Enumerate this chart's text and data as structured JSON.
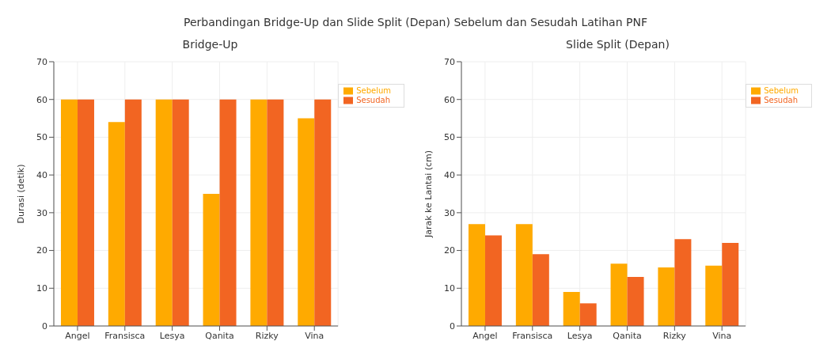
{
  "chart_data": [
    {
      "type": "bar",
      "title": "Bridge-Up",
      "ylabel": "Durasi (detik)",
      "annotations": [
        "Perbandingan Bridge-Up dan Slide Split (Depan) Sebelum dan Sesudah Latihan PNF"
      ],
      "categories": [
        "Angel",
        "Fransisca",
        "Lesya",
        "Qanita",
        "Rizky",
        "Vina"
      ],
      "series": [
        {
          "name": "Sebelum",
          "color": "#ffaa00",
          "values": [
            60,
            54,
            60,
            35,
            60,
            55
          ]
        },
        {
          "name": "Sesudah",
          "color": "#f26522",
          "values": [
            60,
            60,
            60,
            60,
            60,
            60
          ]
        }
      ],
      "ylim": [
        0,
        70
      ],
      "yticks": [
        0,
        10,
        20,
        30,
        40,
        50,
        60,
        70
      ],
      "grid": true,
      "legend": "top right"
    },
    {
      "type": "bar",
      "title": "Slide Split (Depan)",
      "ylabel": "Jarak ke Lantai (cm)",
      "categories": [
        "Angel",
        "Fransisca",
        "Lesya",
        "Qanita",
        "Rizky",
        "Vina"
      ],
      "series": [
        {
          "name": "Sebelum",
          "color": "#ffaa00",
          "values": [
            27,
            27,
            9,
            16.5,
            15.5,
            16
          ]
        },
        {
          "name": "Sesudah",
          "color": "#f26522",
          "values": [
            24,
            19,
            6,
            13,
            23,
            22
          ]
        }
      ],
      "ylim": [
        0,
        70
      ],
      "yticks": [
        0,
        10,
        20,
        30,
        40,
        50,
        60,
        70
      ],
      "grid": true,
      "legend": "top right"
    }
  ]
}
